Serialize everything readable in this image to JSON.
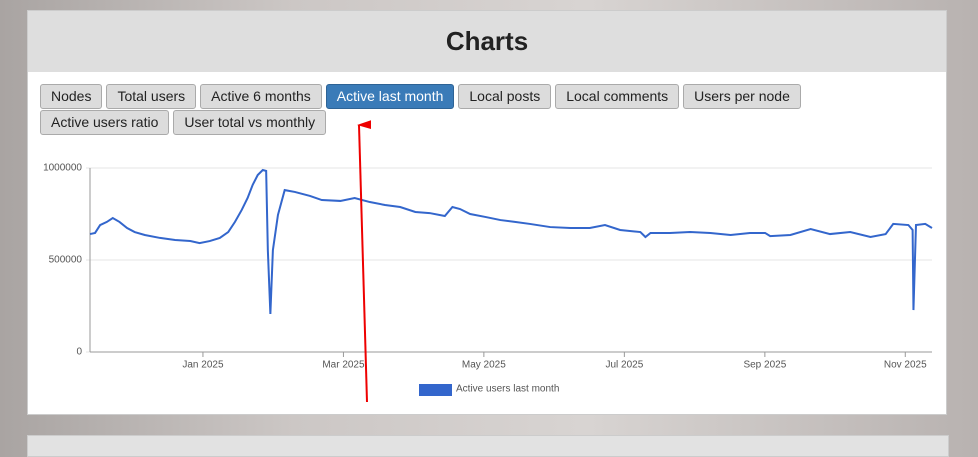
{
  "page": {
    "title": "Charts",
    "buttons": [
      "Nodes",
      "Total users",
      "Active 6 months",
      "Active last month",
      "Local posts",
      "Local comments",
      "Users per node",
      "Active users ratio",
      "User total vs monthly"
    ],
    "active_button": 3
  },
  "chart_data": {
    "type": "line",
    "x": [
      2024.866,
      2024.872,
      2024.878,
      2024.886,
      2024.893,
      2024.901,
      2024.91,
      2024.919,
      2024.931,
      2024.949,
      2024.967,
      2024.985,
      2024.996,
      2025.008,
      2025.02,
      2025.03,
      2025.038,
      2025.046,
      2025.053,
      2025.059,
      2025.065,
      2025.071,
      2025.075,
      2025.077,
      2025.08,
      2025.083,
      2025.089,
      2025.097,
      2025.109,
      2025.127,
      2025.141,
      2025.163,
      2025.18,
      2025.198,
      2025.216,
      2025.234,
      2025.252,
      2025.269,
      2025.287,
      2025.296,
      2025.305,
      2025.317,
      2025.335,
      2025.353,
      2025.37,
      2025.388,
      2025.412,
      2025.436,
      2025.459,
      2025.477,
      2025.495,
      2025.519,
      2025.525,
      2025.531,
      2025.554,
      2025.578,
      2025.602,
      2025.626,
      2025.649,
      2025.667,
      2025.673,
      2025.697,
      2025.721,
      2025.744,
      2025.768,
      2025.792,
      2025.81,
      2025.819,
      2025.837,
      2025.842,
      2025.843,
      2025.846,
      2025.857,
      2025.865
    ],
    "series": [
      {
        "name": "Active users last month",
        "color": "#3366cc",
        "values": [
          641000,
          647000,
          690000,
          707000,
          728000,
          707000,
          674000,
          652000,
          636000,
          620000,
          609000,
          603000,
          592000,
          603000,
          620000,
          652000,
          707000,
          772000,
          837000,
          908000,
          962000,
          989000,
          984000,
          554000,
          207000,
          554000,
          745000,
          880000,
          870000,
          848000,
          826000,
          821000,
          837000,
          815000,
          799000,
          788000,
          761000,
          755000,
          739000,
          788000,
          777000,
          750000,
          734000,
          717000,
          707000,
          696000,
          679000,
          674000,
          674000,
          690000,
          663000,
          652000,
          625000,
          647000,
          647000,
          652000,
          647000,
          636000,
          647000,
          647000,
          630000,
          636000,
          668000,
          641000,
          652000,
          625000,
          641000,
          696000,
          690000,
          663000,
          228000,
          690000,
          696000,
          674000
        ]
      }
    ],
    "xlim": [
      2024.866,
      2025.865
    ],
    "xticks": [
      {
        "value": 2025.0,
        "label": "Jan 2025"
      },
      {
        "value": 2025.1667,
        "label": "Mar 2025"
      },
      {
        "value": 2025.3333,
        "label": "May 2025"
      },
      {
        "value": 2025.5,
        "label": "Jul 2025"
      },
      {
        "value": 2025.6667,
        "label": "Sep 2025"
      },
      {
        "value": 2025.8333,
        "label": "Nov 2025"
      }
    ],
    "ylim": [
      0,
      1000000
    ],
    "yticks": [
      0,
      500000,
      1000000
    ],
    "grid": true,
    "legend": "bottom"
  }
}
